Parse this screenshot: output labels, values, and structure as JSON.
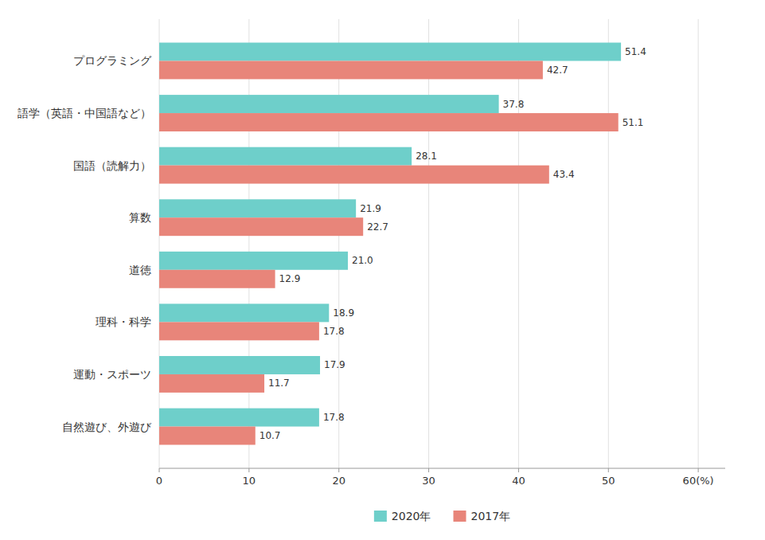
{
  "chart_data": {
    "type": "bar",
    "orientation": "horizontal",
    "categories": [
      "自然遊び、外遊び",
      "運動・スポーツ",
      "理科・科学",
      "道徳",
      "算数",
      "国語（読解力）",
      "語学（英語・中国語など）",
      "プログラミング"
    ],
    "series": [
      {
        "name": "2020年",
        "color": "#6ECFCA",
        "values": [
          17.8,
          17.9,
          18.9,
          21.0,
          21.9,
          28.1,
          37.8,
          51.4
        ],
        "value_labels": [
          "17.8",
          "17.9",
          "18.9",
          "21.0",
          "21.9",
          "28.1",
          "37.8",
          "51.4"
        ]
      },
      {
        "name": "2017年",
        "color": "#E8857A",
        "values": [
          10.7,
          11.7,
          17.8,
          12.9,
          22.7,
          43.4,
          51.1,
          42.7
        ],
        "value_labels": [
          "10.7",
          "11.7",
          "17.8",
          "12.9",
          "22.7",
          "43.4",
          "51.1",
          "42.7"
        ]
      }
    ],
    "xlim": [
      0,
      63
    ],
    "xticks": [
      0,
      10,
      20,
      30,
      40,
      50,
      {
        "value": 60,
        "label": "60(%)"
      }
    ],
    "grid": true,
    "data_labels": true,
    "legend": "bottom"
  }
}
